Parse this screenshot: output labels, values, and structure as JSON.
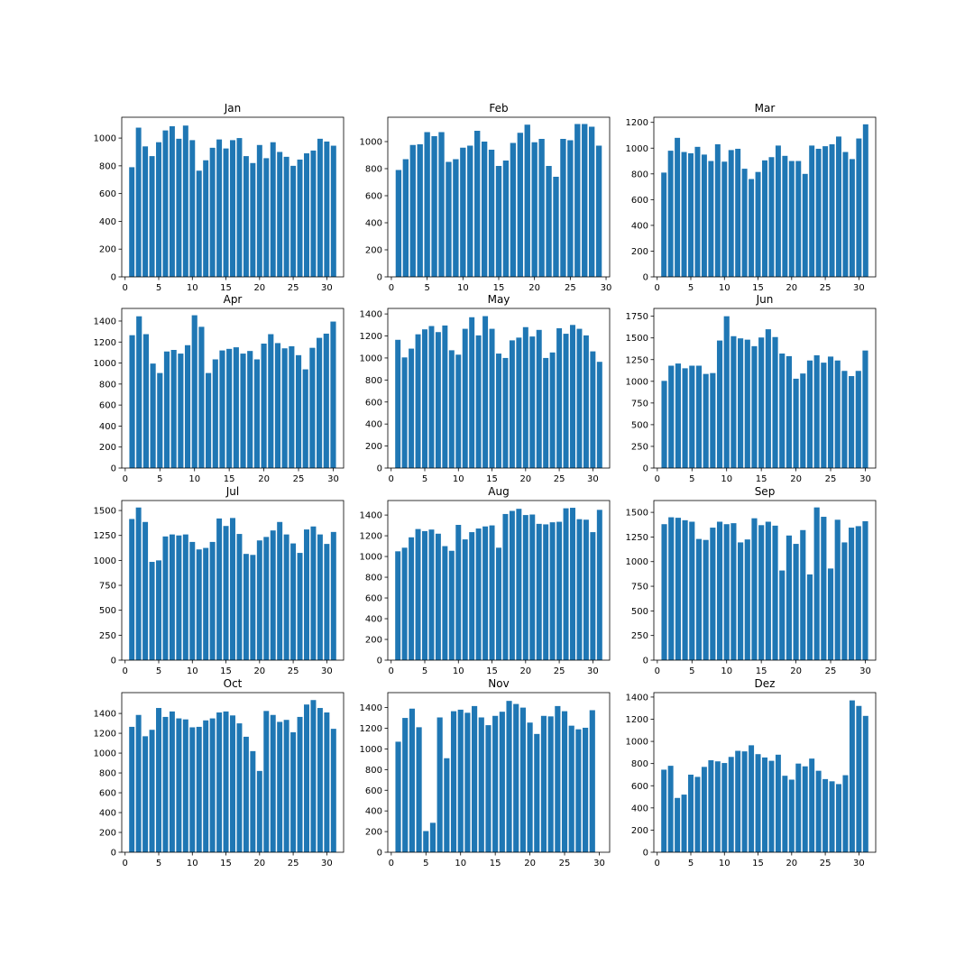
{
  "chart_data": [
    {
      "type": "bar",
      "title": "Jan",
      "x": [
        1,
        2,
        3,
        4,
        5,
        6,
        7,
        8,
        9,
        10,
        11,
        12,
        13,
        14,
        15,
        16,
        17,
        18,
        19,
        20,
        21,
        22,
        23,
        24,
        25,
        26,
        27,
        28,
        29,
        30,
        31
      ],
      "values": [
        790,
        1075,
        940,
        870,
        970,
        1055,
        1085,
        995,
        1090,
        985,
        765,
        840,
        930,
        990,
        925,
        985,
        1000,
        870,
        820,
        950,
        855,
        970,
        900,
        865,
        800,
        845,
        890,
        910,
        995,
        975,
        945
      ],
      "ylim": [
        0,
        1150
      ],
      "yticks": [
        0,
        200,
        400,
        600,
        800,
        1000
      ],
      "xlim": [
        -0.5,
        32.5
      ],
      "xticks": [
        0,
        5,
        10,
        15,
        20,
        25,
        30
      ]
    },
    {
      "type": "bar",
      "title": "Feb",
      "x": [
        1,
        2,
        3,
        4,
        5,
        6,
        7,
        8,
        9,
        10,
        11,
        12,
        13,
        14,
        15,
        16,
        17,
        18,
        19,
        20,
        21,
        22,
        23,
        24,
        25,
        26,
        27,
        28,
        29
      ],
      "values": [
        790,
        870,
        975,
        980,
        1070,
        1040,
        1070,
        850,
        870,
        955,
        970,
        1080,
        1000,
        940,
        820,
        860,
        990,
        1065,
        1125,
        995,
        1020,
        820,
        740,
        1020,
        1010,
        1130,
        1130,
        1110,
        970
      ],
      "ylim": [
        0,
        1180
      ],
      "yticks": [
        0,
        200,
        400,
        600,
        800,
        1000
      ],
      "xlim": [
        -0.5,
        30.5
      ],
      "xticks": [
        0,
        5,
        10,
        15,
        20,
        25,
        30
      ]
    },
    {
      "type": "bar",
      "title": "Mar",
      "x": [
        1,
        2,
        3,
        4,
        5,
        6,
        7,
        8,
        9,
        10,
        11,
        12,
        13,
        14,
        15,
        16,
        17,
        18,
        19,
        20,
        21,
        22,
        23,
        24,
        25,
        26,
        27,
        28,
        29,
        30,
        31
      ],
      "values": [
        810,
        980,
        1080,
        970,
        960,
        1010,
        950,
        900,
        1030,
        895,
        985,
        995,
        840,
        760,
        815,
        905,
        930,
        1020,
        940,
        900,
        900,
        800,
        1020,
        995,
        1015,
        1030,
        1090,
        970,
        915,
        1075,
        1185
      ],
      "ylim": [
        0,
        1240
      ],
      "yticks": [
        0,
        200,
        400,
        600,
        800,
        1000,
        1200
      ],
      "xlim": [
        -0.5,
        32.5
      ],
      "xticks": [
        0,
        5,
        10,
        15,
        20,
        25,
        30
      ]
    },
    {
      "type": "bar",
      "title": "Apr",
      "x": [
        1,
        2,
        3,
        4,
        5,
        6,
        7,
        8,
        9,
        10,
        11,
        12,
        13,
        14,
        15,
        16,
        17,
        18,
        19,
        20,
        21,
        22,
        23,
        24,
        25,
        26,
        27,
        28,
        29,
        30
      ],
      "values": [
        1265,
        1445,
        1275,
        995,
        905,
        1110,
        1125,
        1090,
        1170,
        1455,
        1345,
        905,
        1035,
        1120,
        1135,
        1150,
        1090,
        1115,
        1035,
        1185,
        1275,
        1190,
        1140,
        1160,
        1075,
        940,
        1145,
        1240,
        1280,
        1395
      ],
      "ylim": [
        0,
        1520
      ],
      "yticks": [
        0,
        200,
        400,
        600,
        800,
        1000,
        1200,
        1400
      ],
      "xlim": [
        -0.5,
        31.5
      ],
      "xticks": [
        0,
        5,
        10,
        15,
        20,
        25,
        30
      ]
    },
    {
      "type": "bar",
      "title": "May",
      "x": [
        1,
        2,
        3,
        4,
        5,
        6,
        7,
        8,
        9,
        10,
        11,
        12,
        13,
        14,
        15,
        16,
        17,
        18,
        19,
        20,
        21,
        22,
        23,
        24,
        25,
        26,
        27,
        28,
        29,
        30,
        31
      ],
      "values": [
        1165,
        1005,
        1085,
        1215,
        1260,
        1290,
        1235,
        1295,
        1070,
        1030,
        1265,
        1370,
        1205,
        1380,
        1265,
        1040,
        1000,
        1160,
        1185,
        1280,
        1195,
        1255,
        1000,
        1050,
        1270,
        1220,
        1300,
        1265,
        1205,
        1060,
        965
      ],
      "ylim": [
        0,
        1450
      ],
      "yticks": [
        0,
        200,
        400,
        600,
        800,
        1000,
        1200,
        1400
      ],
      "xlim": [
        -0.5,
        32.5
      ],
      "xticks": [
        0,
        5,
        10,
        15,
        20,
        25,
        30
      ]
    },
    {
      "type": "bar",
      "title": "Jun",
      "x": [
        1,
        2,
        3,
        4,
        5,
        6,
        7,
        8,
        9,
        10,
        11,
        12,
        13,
        14,
        15,
        16,
        17,
        18,
        19,
        20,
        21,
        22,
        23,
        24,
        25,
        26,
        27,
        28,
        29,
        30
      ],
      "values": [
        1005,
        1180,
        1205,
        1150,
        1180,
        1180,
        1085,
        1095,
        1470,
        1750,
        1520,
        1495,
        1480,
        1405,
        1505,
        1600,
        1510,
        1320,
        1290,
        1030,
        1090,
        1240,
        1300,
        1215,
        1285,
        1240,
        1120,
        1060,
        1120,
        1355
      ],
      "ylim": [
        0,
        1840
      ],
      "yticks": [
        0,
        250,
        500,
        750,
        1000,
        1250,
        1500,
        1750
      ],
      "xlim": [
        -0.5,
        31.5
      ],
      "xticks": [
        0,
        5,
        10,
        15,
        20,
        25,
        30
      ]
    },
    {
      "type": "bar",
      "title": "Jul",
      "x": [
        1,
        2,
        3,
        4,
        5,
        6,
        7,
        8,
        9,
        10,
        11,
        12,
        13,
        14,
        15,
        16,
        17,
        18,
        19,
        20,
        21,
        22,
        23,
        24,
        25,
        26,
        27,
        28,
        29,
        30,
        31
      ],
      "values": [
        1415,
        1530,
        1385,
        985,
        1000,
        1240,
        1260,
        1250,
        1260,
        1185,
        1110,
        1125,
        1185,
        1420,
        1345,
        1425,
        1265,
        1065,
        1055,
        1200,
        1235,
        1300,
        1385,
        1260,
        1170,
        1075,
        1310,
        1340,
        1260,
        1165,
        1285
      ],
      "ylim": [
        0,
        1600
      ],
      "yticks": [
        0,
        250,
        500,
        750,
        1000,
        1250,
        1500
      ],
      "xlim": [
        -0.5,
        32.5
      ],
      "xticks": [
        0,
        5,
        10,
        15,
        20,
        25,
        30
      ]
    },
    {
      "type": "bar",
      "title": "Aug",
      "x": [
        1,
        2,
        3,
        4,
        5,
        6,
        7,
        8,
        9,
        10,
        11,
        12,
        13,
        14,
        15,
        16,
        17,
        18,
        19,
        20,
        21,
        22,
        23,
        24,
        25,
        26,
        27,
        28,
        29,
        30,
        31
      ],
      "values": [
        1050,
        1085,
        1185,
        1265,
        1245,
        1260,
        1220,
        1100,
        1055,
        1305,
        1165,
        1235,
        1270,
        1290,
        1300,
        1085,
        1410,
        1440,
        1460,
        1400,
        1405,
        1315,
        1310,
        1330,
        1335,
        1465,
        1470,
        1360,
        1355,
        1235,
        1450
      ],
      "ylim": [
        0,
        1540
      ],
      "yticks": [
        0,
        200,
        400,
        600,
        800,
        1000,
        1200,
        1400
      ],
      "xlim": [
        -0.5,
        32.5
      ],
      "xticks": [
        0,
        5,
        10,
        15,
        20,
        25,
        30
      ]
    },
    {
      "type": "bar",
      "title": "Sep",
      "x": [
        1,
        2,
        3,
        4,
        5,
        6,
        7,
        8,
        9,
        10,
        11,
        12,
        13,
        14,
        15,
        16,
        17,
        18,
        19,
        20,
        21,
        22,
        23,
        24,
        25,
        26,
        27,
        28,
        29,
        30
      ],
      "values": [
        1380,
        1450,
        1445,
        1420,
        1405,
        1230,
        1220,
        1345,
        1405,
        1380,
        1390,
        1195,
        1225,
        1440,
        1370,
        1405,
        1365,
        910,
        1265,
        1180,
        1320,
        870,
        1550,
        1455,
        930,
        1425,
        1195,
        1345,
        1360,
        1410
      ],
      "ylim": [
        0,
        1620
      ],
      "yticks": [
        0,
        250,
        500,
        750,
        1000,
        1250,
        1500
      ],
      "xlim": [
        -0.5,
        31.5
      ],
      "xticks": [
        0,
        5,
        10,
        15,
        20,
        25,
        30
      ]
    },
    {
      "type": "bar",
      "title": "Oct",
      "x": [
        1,
        2,
        3,
        4,
        5,
        6,
        7,
        8,
        9,
        10,
        11,
        12,
        13,
        14,
        15,
        16,
        17,
        18,
        19,
        20,
        21,
        22,
        23,
        24,
        25,
        26,
        27,
        28,
        29,
        30,
        31
      ],
      "values": [
        1265,
        1385,
        1170,
        1235,
        1455,
        1365,
        1420,
        1350,
        1340,
        1260,
        1265,
        1330,
        1350,
        1410,
        1420,
        1380,
        1300,
        1165,
        1020,
        820,
        1425,
        1385,
        1315,
        1335,
        1210,
        1365,
        1490,
        1535,
        1455,
        1410,
        1245
      ],
      "ylim": [
        0,
        1610
      ],
      "yticks": [
        0,
        200,
        400,
        600,
        800,
        1000,
        1200,
        1400
      ],
      "xlim": [
        -0.5,
        32.5
      ],
      "xticks": [
        0,
        5,
        10,
        15,
        20,
        25,
        30
      ]
    },
    {
      "type": "bar",
      "title": "Nov",
      "x": [
        1,
        2,
        3,
        4,
        5,
        6,
        7,
        8,
        9,
        10,
        11,
        12,
        13,
        14,
        15,
        16,
        17,
        18,
        19,
        20,
        21,
        22,
        23,
        24,
        25,
        26,
        27,
        28,
        29,
        30
      ],
      "values": [
        1070,
        1300,
        1390,
        1210,
        205,
        285,
        1305,
        910,
        1365,
        1380,
        1350,
        1415,
        1305,
        1230,
        1320,
        1360,
        1465,
        1435,
        1400,
        1255,
        1145,
        1320,
        1315,
        1415,
        1365,
        1225,
        1190,
        1205,
        1375,
        0
      ],
      "ylim": [
        0,
        1545
      ],
      "yticks": [
        0,
        200,
        400,
        600,
        800,
        1000,
        1200,
        1400
      ],
      "xlim": [
        -0.5,
        31.5
      ],
      "xticks": [
        0,
        5,
        10,
        15,
        20,
        25,
        30
      ]
    },
    {
      "type": "bar",
      "title": "Dez",
      "x": [
        1,
        2,
        3,
        4,
        5,
        6,
        7,
        8,
        9,
        10,
        11,
        12,
        13,
        14,
        15,
        16,
        17,
        18,
        19,
        20,
        21,
        22,
        23,
        24,
        25,
        26,
        27,
        28,
        29,
        30,
        31
      ],
      "values": [
        745,
        780,
        490,
        520,
        700,
        680,
        770,
        830,
        820,
        805,
        860,
        915,
        910,
        965,
        885,
        855,
        825,
        880,
        690,
        655,
        800,
        775,
        845,
        735,
        660,
        640,
        615,
        695,
        1370,
        1320,
        1230
      ],
      "ylim": [
        0,
        1440
      ],
      "yticks": [
        0,
        200,
        400,
        600,
        800,
        1000,
        1200,
        1400
      ],
      "xlim": [
        -0.5,
        32.5
      ],
      "xticks": [
        0,
        5,
        10,
        15,
        20,
        25,
        30
      ]
    }
  ],
  "colors": {
    "bar": "#1f77b4",
    "axis": "#000000",
    "background": "#ffffff"
  }
}
